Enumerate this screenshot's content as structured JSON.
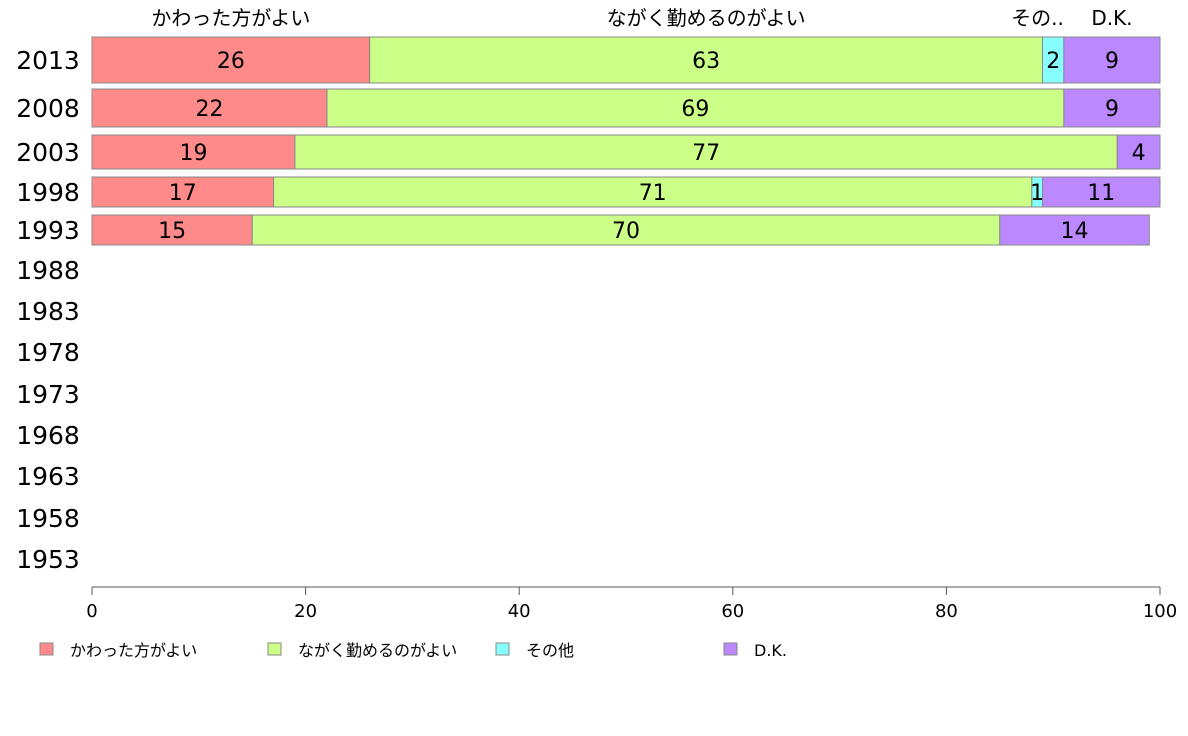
{
  "chart_data": {
    "type": "bar",
    "orientation": "horizontal",
    "stacked": true,
    "categories": [
      "2013",
      "2008",
      "2003",
      "1998",
      "1993",
      "1988",
      "1983",
      "1978",
      "1973",
      "1968",
      "1963",
      "1958",
      "1953"
    ],
    "series": [
      {
        "name": "かわった方がよい",
        "color": "#ff8a8a",
        "values": [
          26,
          22,
          19,
          17,
          15,
          null,
          null,
          null,
          null,
          null,
          null,
          null,
          null
        ]
      },
      {
        "name": "ながく勤めるのがよい",
        "color": "#ccff88",
        "values": [
          63,
          69,
          77,
          71,
          70,
          null,
          null,
          null,
          null,
          null,
          null,
          null,
          null
        ]
      },
      {
        "name": "その他",
        "color": "#88ffff",
        "values": [
          2,
          0,
          0,
          1,
          0,
          null,
          null,
          null,
          null,
          null,
          null,
          null,
          null
        ]
      },
      {
        "name": "D.K.",
        "color": "#bb88ff",
        "values": [
          9,
          9,
          4,
          11,
          14,
          null,
          null,
          null,
          null,
          null,
          null,
          null,
          null
        ]
      }
    ],
    "top_labels": [
      "かわった方がよい",
      "ながく勤めるのがよい",
      "その..",
      "D.K."
    ],
    "xlim": [
      0,
      100
    ],
    "xticks": [
      0,
      20,
      40,
      60,
      80,
      100
    ],
    "legend_position": "bottom",
    "grid": false
  }
}
